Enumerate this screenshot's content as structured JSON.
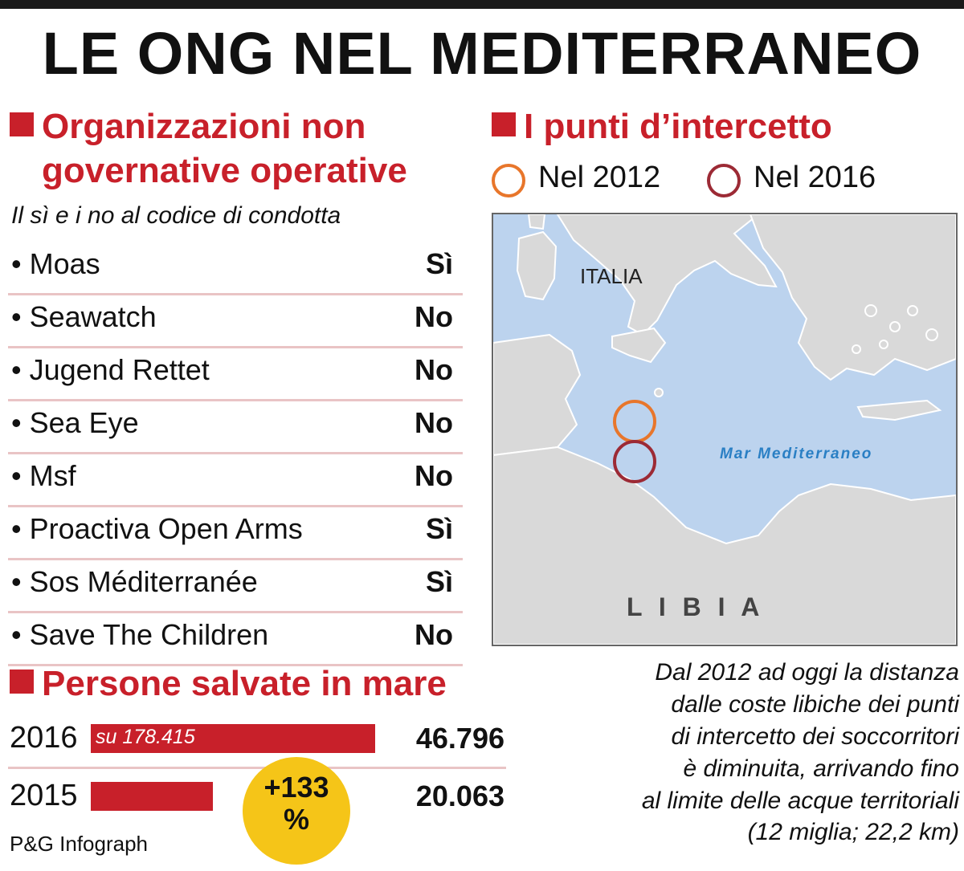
{
  "title": "LE ONG NEL MEDITERRANEO",
  "ngo_section": {
    "heading_line1": "Organizzazioni non",
    "heading_line2": "governative operative",
    "subtitle": "Il sì e i no al codice di condotta",
    "rows": [
      {
        "name": "• Moas",
        "answer": "Sì"
      },
      {
        "name": "• Seawatch",
        "answer": "No"
      },
      {
        "name": "• Jugend Rettet",
        "answer": "No"
      },
      {
        "name": "• Sea Eye",
        "answer": "No"
      },
      {
        "name": "• Msf",
        "answer": "No"
      },
      {
        "name": "• Proactiva Open Arms",
        "answer": "Sì"
      },
      {
        "name": "• Sos Méditerranée",
        "answer": "Sì"
      },
      {
        "name": "• Save The Children",
        "answer": "No"
      }
    ]
  },
  "map_section": {
    "heading": "I punti d’intercetto",
    "legend": [
      {
        "label": "Nel 2012",
        "color": "#e8762b"
      },
      {
        "label": "Nel 2016",
        "color": "#9c2a35"
      }
    ],
    "labels": {
      "italy": "ITALIA",
      "sea": "Mar Mediterraneo",
      "libya": "L I B I A"
    },
    "note_lines": [
      "Dal 2012 ad oggi la distanza",
      "dalle coste libiche dei punti",
      "di intercetto dei soccorritori",
      "è diminuita, arrivando fino",
      "al limite delle acque territoriali",
      "(12 miglia; 22,2 km)"
    ]
  },
  "rescued_section": {
    "heading": "Persone salvate in mare",
    "badge_line1": "+133",
    "badge_line2": "%"
  },
  "chart_data": {
    "type": "bar",
    "orientation": "horizontal",
    "title": "Persone salvate in mare",
    "categories": [
      "2016",
      "2015"
    ],
    "values": [
      46796,
      20063
    ],
    "value_labels": [
      "46.796",
      "20.063"
    ],
    "annotations": [
      "su 178.415"
    ],
    "colors": {
      "bar": "#c8202a"
    }
  },
  "credit": "P&G Infograph"
}
